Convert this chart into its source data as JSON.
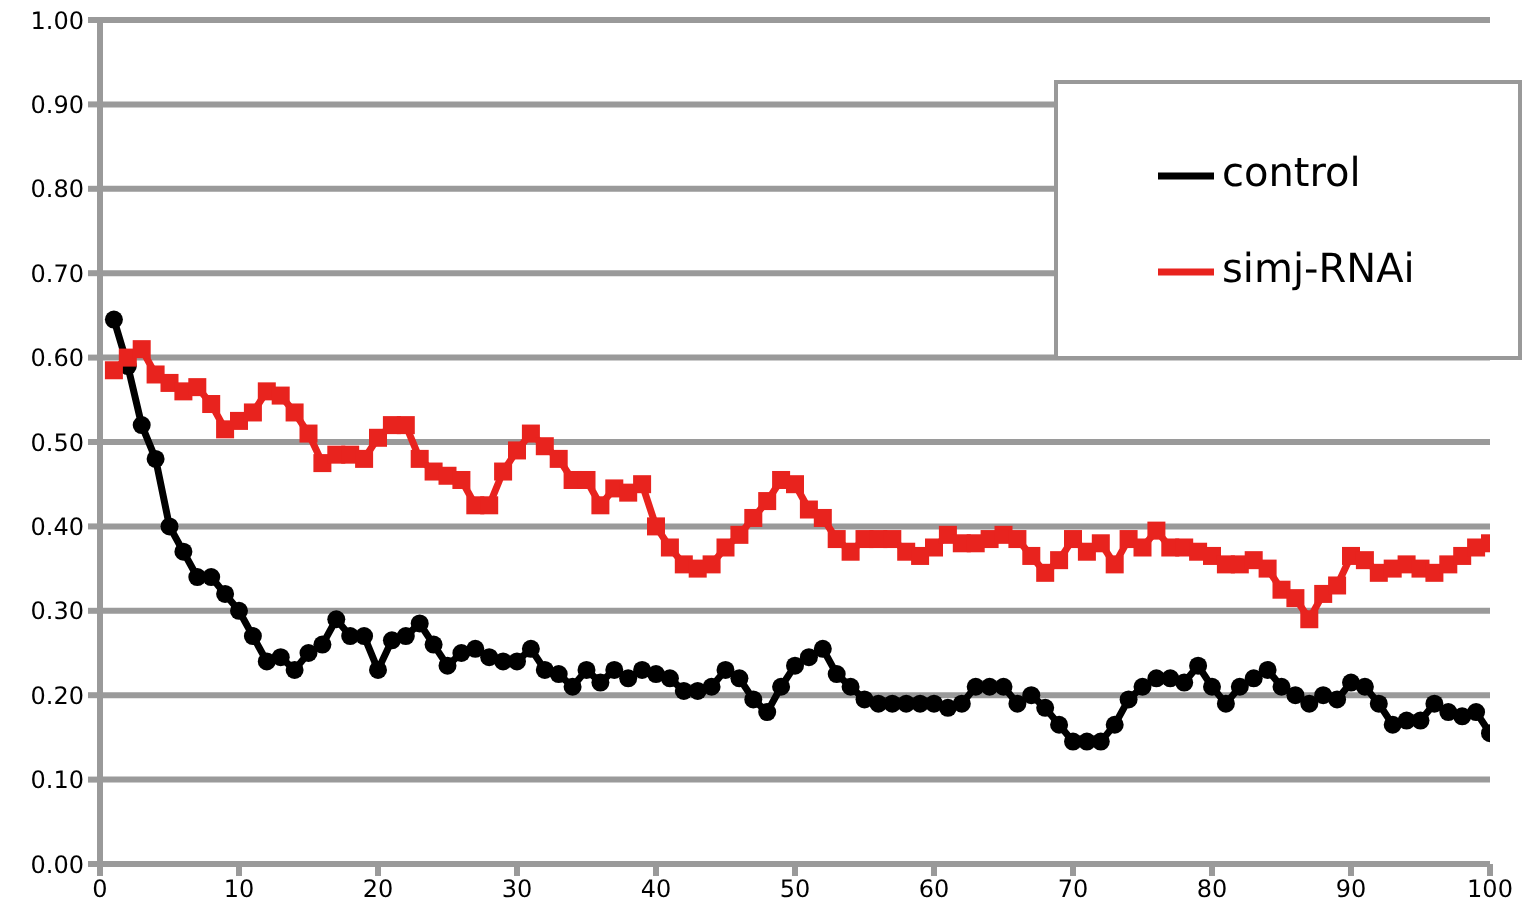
{
  "chart_data": {
    "type": "line",
    "x": [
      1,
      2,
      3,
      4,
      5,
      6,
      7,
      8,
      9,
      10,
      11,
      12,
      13,
      14,
      15,
      16,
      17,
      18,
      19,
      20,
      21,
      22,
      23,
      24,
      25,
      26,
      27,
      28,
      29,
      30,
      31,
      32,
      33,
      34,
      35,
      36,
      37,
      38,
      39,
      40,
      41,
      42,
      43,
      44,
      45,
      46,
      47,
      48,
      49,
      50,
      51,
      52,
      53,
      54,
      55,
      56,
      57,
      58,
      59,
      60,
      61,
      62,
      63,
      64,
      65,
      66,
      67,
      68,
      69,
      70,
      71,
      72,
      73,
      74,
      75,
      76,
      77,
      78,
      79,
      80,
      81,
      82,
      83,
      84,
      85,
      86,
      87,
      88,
      89,
      90,
      91,
      92,
      93,
      94,
      95,
      96,
      97,
      98,
      99,
      100
    ],
    "series": [
      {
        "name": "control",
        "color": "#000000",
        "marker": "circle",
        "values": [
          0.645,
          0.59,
          0.52,
          0.48,
          0.4,
          0.37,
          0.34,
          0.34,
          0.32,
          0.3,
          0.27,
          0.24,
          0.245,
          0.23,
          0.25,
          0.26,
          0.29,
          0.27,
          0.27,
          0.23,
          0.265,
          0.27,
          0.285,
          0.26,
          0.235,
          0.25,
          0.255,
          0.245,
          0.24,
          0.24,
          0.255,
          0.23,
          0.225,
          0.21,
          0.23,
          0.215,
          0.23,
          0.22,
          0.23,
          0.225,
          0.22,
          0.205,
          0.205,
          0.21,
          0.23,
          0.22,
          0.195,
          0.18,
          0.21,
          0.235,
          0.245,
          0.255,
          0.225,
          0.21,
          0.195,
          0.19,
          0.19,
          0.19,
          0.19,
          0.19,
          0.185,
          0.19,
          0.21,
          0.21,
          0.21,
          0.19,
          0.2,
          0.185,
          0.165,
          0.145,
          0.145,
          0.145,
          0.165,
          0.195,
          0.21,
          0.22,
          0.22,
          0.215,
          0.235,
          0.21,
          0.19,
          0.21,
          0.22,
          0.23,
          0.21,
          0.2,
          0.19,
          0.2,
          0.195,
          0.215,
          0.21,
          0.19,
          0.165,
          0.17,
          0.17,
          0.19,
          0.18,
          0.175,
          0.18,
          0.155
        ]
      },
      {
        "name": "simj-RNAi",
        "color": "#e8231e",
        "marker": "square",
        "values": [
          0.585,
          0.6,
          0.61,
          0.58,
          0.57,
          0.56,
          0.565,
          0.545,
          0.515,
          0.525,
          0.535,
          0.56,
          0.555,
          0.535,
          0.51,
          0.475,
          0.485,
          0.485,
          0.48,
          0.505,
          0.52,
          0.52,
          0.48,
          0.465,
          0.46,
          0.455,
          0.425,
          0.425,
          0.465,
          0.49,
          0.51,
          0.495,
          0.48,
          0.455,
          0.455,
          0.425,
          0.445,
          0.44,
          0.45,
          0.4,
          0.375,
          0.355,
          0.35,
          0.355,
          0.375,
          0.39,
          0.41,
          0.43,
          0.455,
          0.45,
          0.42,
          0.41,
          0.385,
          0.37,
          0.385,
          0.385,
          0.385,
          0.37,
          0.365,
          0.375,
          0.39,
          0.38,
          0.38,
          0.385,
          0.39,
          0.385,
          0.365,
          0.345,
          0.36,
          0.385,
          0.37,
          0.38,
          0.355,
          0.385,
          0.375,
          0.395,
          0.375,
          0.375,
          0.37,
          0.365,
          0.355,
          0.355,
          0.36,
          0.35,
          0.325,
          0.315,
          0.29,
          0.32,
          0.33,
          0.365,
          0.36,
          0.345,
          0.35,
          0.355,
          0.35,
          0.345,
          0.355,
          0.365,
          0.375,
          0.38
        ]
      }
    ],
    "xlim": [
      0,
      100
    ],
    "xticks": [
      0,
      10,
      20,
      30,
      40,
      50,
      60,
      70,
      80,
      90,
      100
    ],
    "ylim": [
      0,
      1
    ],
    "yticks": [
      {
        "value": 0,
        "label": "0.00"
      },
      {
        "value": 0.1,
        "label": "0.10"
      },
      {
        "value": 0.2,
        "label": "0.20"
      },
      {
        "value": 0.3,
        "label": "0.30"
      },
      {
        "value": 0.4,
        "label": "0.40"
      },
      {
        "value": 0.5,
        "label": "0.50"
      },
      {
        "value": 0.6,
        "label": "0.60"
      },
      {
        "value": 0.7,
        "label": "0.70"
      },
      {
        "value": 0.8,
        "label": "0.80"
      },
      {
        "value": 0.9,
        "label": "0.90"
      },
      {
        "value": 1,
        "label": "1.00"
      }
    ],
    "grid": "y",
    "legend": "top right",
    "line_style": "solid"
  }
}
